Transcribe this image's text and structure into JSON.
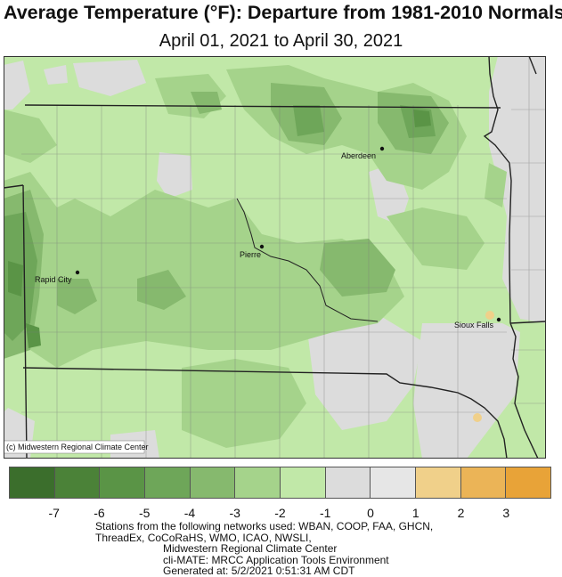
{
  "title": "Average Temperature (°F): Departure from 1981-2010 Normals",
  "subtitle": "April 01, 2021 to April 30, 2021",
  "credit": "(c) Midwestern Regional Climate Center",
  "cities": [
    "Aberdeen",
    "Pierre",
    "Rapid City",
    "Sioux Falls"
  ],
  "legend": {
    "colors": [
      "#3b6e2c",
      "#4b8238",
      "#5a9446",
      "#6ea659",
      "#86b96e",
      "#a5d38b",
      "#c1e8a8",
      "#dcdcdc",
      "#e6e6e6",
      "#f0d08a",
      "#ebb457",
      "#e8a338"
    ],
    "ticks": [
      "-7",
      "-6",
      "-5",
      "-4",
      "-3",
      "-2",
      "-1",
      "0",
      "1",
      "2",
      "3"
    ]
  },
  "footer": [
    "Stations from the following networks used: WBAN, COOP, FAA, GHCN,",
    "ThreadEx, CoCoRaHS, WMO, ICAO, NWSLI,",
    "Midwestern Regional Climate Center",
    "cli-MATE: MRCC Application Tools Environment",
    "Generated at: 5/2/2021 0:51:31 AM CDT"
  ]
}
